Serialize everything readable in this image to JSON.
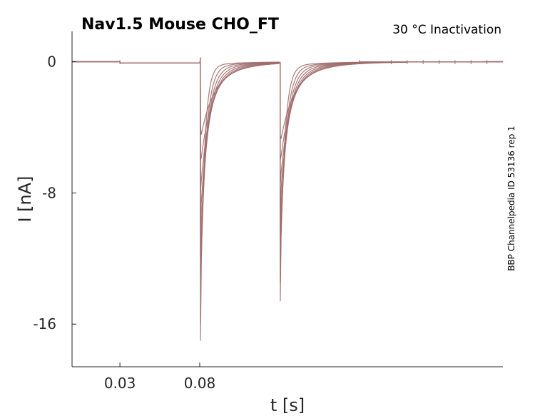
{
  "chart_data": {
    "type": "line",
    "title": "Nav1.5  Mouse  CHO_FT",
    "subtitle": "30 °C  Inactivation",
    "side_label": "BBP Channelpedia ID 53136 rep 1",
    "xlabel": "t [s]",
    "ylabel": "I [nA]",
    "xlim": [
      0.0,
      0.27
    ],
    "ylim": [
      -18.6,
      1.85
    ],
    "x_ticks": [
      0.03,
      0.08
    ],
    "x_tick_labels": [
      "0.03",
      "0.08"
    ],
    "y_ticks": [
      0,
      -8,
      -16
    ],
    "y_tick_labels": [
      "0",
      "-8",
      "-16"
    ],
    "grid": false,
    "line_color": "#a06b6b",
    "pulse1_time": 0.0805,
    "pulse2_time": 0.1305,
    "pulse1_peaks": [
      -17.0,
      -16.0,
      -14.0,
      -12.0,
      -10.0,
      -8.0,
      -6.0,
      -4.0
    ],
    "pulse2_peaks": [
      -14.6,
      -13.5,
      -12.0,
      -10.5,
      -9.0,
      -7.5,
      -6.0,
      -4.5
    ],
    "series": [
      {
        "values_note": "",
        "x": [
          0.0,
          0.03,
          0.0305,
          0.08,
          0.0805,
          0.081,
          0.083,
          0.086,
          0.09,
          0.095,
          0.1,
          0.11,
          0.12,
          0.13,
          0.1305,
          0.131,
          0.133,
          0.136,
          0.14,
          0.145,
          0.15,
          0.16,
          0.17,
          0.18,
          0.27
        ],
        "y": [
          0.0,
          0.0,
          -0.1,
          -0.1,
          -17.0,
          -9.0,
          -3.5,
          -1.6,
          -0.9,
          -0.5,
          -0.3,
          -0.15,
          -0.08,
          -0.05,
          -14.6,
          -8.0,
          -3.2,
          -1.5,
          -0.8,
          -0.45,
          -0.25,
          -0.12,
          -0.06,
          -0.03,
          0.0
        ]
      }
    ]
  }
}
